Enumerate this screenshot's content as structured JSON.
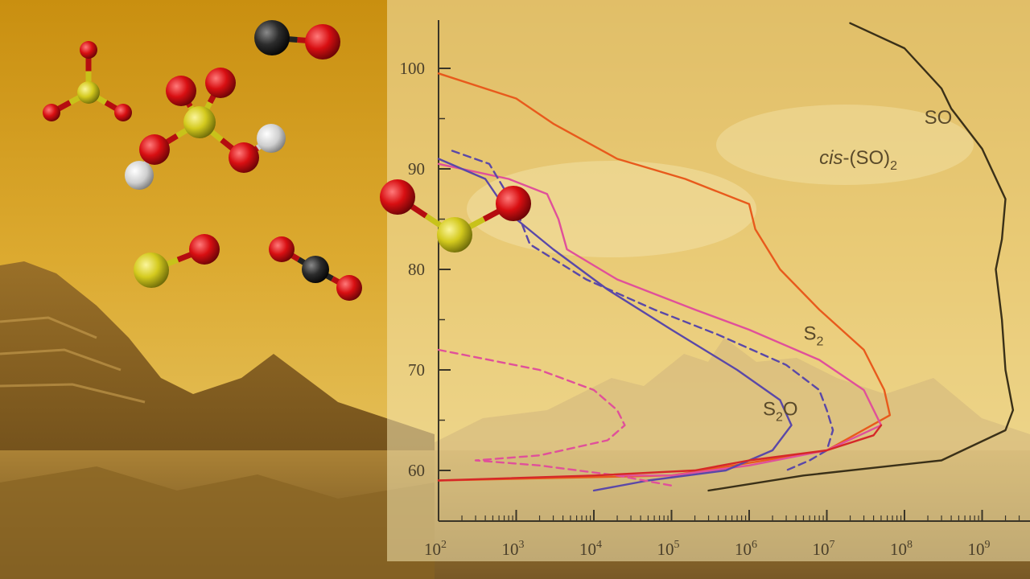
{
  "colors": {
    "sky_top": "#c98f10",
    "sky_mid": "#e0b43a",
    "ground": "#a87d2c",
    "panel": "#f4e6b0",
    "axis": "#3a3528",
    "series_cis_SO2": "#e85a1c",
    "series_S2": "#e0509a",
    "series_S2O": "#5a48a8",
    "series_SO": "#3a3018",
    "series_red": "#d52828"
  },
  "chart_data": {
    "type": "line",
    "title": "",
    "xlabel": "",
    "ylabel": "",
    "xscale": "log",
    "xlim": [
      100,
      3000000000
    ],
    "ylim": [
      56,
      106
    ],
    "x_ticks": [
      {
        "value": 100,
        "label": "10",
        "exp": "2"
      },
      {
        "value": 1000,
        "label": "10",
        "exp": "3"
      },
      {
        "value": 10000,
        "label": "10",
        "exp": "4"
      },
      {
        "value": 100000,
        "label": "10",
        "exp": "5"
      },
      {
        "value": 1000000,
        "label": "10",
        "exp": "6"
      },
      {
        "value": 10000000,
        "label": "10",
        "exp": "7"
      },
      {
        "value": 100000000,
        "label": "10",
        "exp": "8"
      },
      {
        "value": 1000000000,
        "label": "10",
        "exp": "9"
      }
    ],
    "y_ticks": [
      60,
      70,
      80,
      90,
      100
    ],
    "grid": false,
    "legend": "none",
    "series": [
      {
        "name": "cis-(SO)2",
        "label_parts": [
          "cis",
          "-(SO)",
          "2"
        ],
        "style": "solid",
        "color": "#e85a1c",
        "points": [
          [
            100,
            99.5
          ],
          [
            1000,
            97
          ],
          [
            3000,
            94.5
          ],
          [
            20000,
            91
          ],
          [
            150000,
            89
          ],
          [
            1000000,
            86.5
          ],
          [
            1200000,
            84
          ],
          [
            2500000,
            80
          ],
          [
            8000000,
            76
          ],
          [
            30000000,
            72
          ],
          [
            55000000,
            68
          ],
          [
            65000000,
            65.5
          ],
          [
            10000000,
            62
          ],
          [
            100000,
            59.5
          ],
          [
            100,
            59
          ]
        ]
      },
      {
        "name": "S2",
        "label_parts": [
          "S",
          "",
          "2"
        ],
        "style": "solid",
        "color": "#e0509a",
        "points": [
          [
            100,
            90.5
          ],
          [
            800,
            89
          ],
          [
            2500,
            87.5
          ],
          [
            3500,
            85
          ],
          [
            4500,
            82
          ],
          [
            20000,
            79
          ],
          [
            200000,
            76
          ],
          [
            1000000,
            74
          ],
          [
            8000000,
            71
          ],
          [
            30000000,
            68
          ],
          [
            50000000,
            64.5
          ],
          [
            10000000,
            62
          ],
          [
            1000000,
            60.5
          ],
          [
            100000,
            59.5
          ],
          [
            20000,
            59.5
          ]
        ]
      },
      {
        "name": "S2O",
        "label_parts": [
          "S",
          "2",
          "O"
        ],
        "style": "solid",
        "color": "#5a48a8",
        "points": [
          [
            100,
            91
          ],
          [
            400,
            89
          ],
          [
            600,
            87
          ],
          [
            1000,
            85
          ],
          [
            3000,
            82
          ],
          [
            15000,
            78
          ],
          [
            100000,
            74
          ],
          [
            700000,
            70
          ],
          [
            2500000,
            67
          ],
          [
            3500000,
            64.5
          ],
          [
            2000000,
            62
          ],
          [
            500000,
            60
          ],
          [
            50000,
            59
          ],
          [
            10000,
            58
          ]
        ]
      },
      {
        "name": "",
        "style": "dashed",
        "color": "#5a48a8",
        "points": [
          [
            150,
            91.8
          ],
          [
            450,
            90.5
          ],
          [
            700,
            88
          ],
          [
            1000,
            86
          ],
          [
            1500,
            82.5
          ],
          [
            8000,
            79
          ],
          [
            60000,
            76
          ],
          [
            400000,
            73.5
          ],
          [
            3000000,
            70.5
          ],
          [
            8000000,
            68
          ],
          [
            10000000,
            66
          ],
          [
            12000000,
            64
          ],
          [
            10000000,
            62
          ],
          [
            6000000,
            61
          ],
          [
            3000000,
            60
          ]
        ]
      },
      {
        "name": "",
        "style": "dashed",
        "color": "#e0509a",
        "points": [
          [
            100,
            72
          ],
          [
            2000,
            70
          ],
          [
            10000,
            68
          ],
          [
            20000,
            66
          ],
          [
            25000,
            64.5
          ],
          [
            15000,
            63
          ],
          [
            2000,
            61.5
          ],
          [
            300,
            61
          ],
          [
            2000,
            60.5
          ],
          [
            20000,
            59.5
          ],
          [
            100000,
            58.5
          ]
        ]
      },
      {
        "name": "",
        "style": "solid",
        "color": "#d52828",
        "points": [
          [
            100,
            59
          ],
          [
            10000,
            59.5
          ],
          [
            200000,
            60
          ],
          [
            1000000,
            61
          ],
          [
            10000000,
            62
          ],
          [
            40000000,
            63.5
          ],
          [
            50000000,
            64.5
          ]
        ]
      },
      {
        "name": "SO",
        "label_parts": [
          "SO",
          "",
          ""
        ],
        "style": "solid",
        "color": "#3a3018",
        "points": [
          [
            20000000,
            104.5
          ],
          [
            100000000,
            102
          ],
          [
            300000000,
            98
          ],
          [
            400000000,
            96
          ],
          [
            1000000000,
            92
          ],
          [
            2000000000,
            87
          ],
          [
            1800000000,
            83
          ],
          [
            1500000000,
            80
          ],
          [
            1800000000,
            75
          ],
          [
            2000000000,
            70
          ],
          [
            2500000000,
            66
          ],
          [
            2000000000,
            64
          ],
          [
            300000000,
            61
          ],
          [
            5000000,
            59.5
          ],
          [
            300000,
            58
          ]
        ]
      }
    ],
    "annotations": [
      {
        "series": "cis-(SO)2",
        "at": [
          8000000,
          90.5
        ]
      },
      {
        "series": "S2",
        "at": [
          5000000,
          73
        ]
      },
      {
        "series": "S2O",
        "at": [
          1500000,
          65.5
        ]
      },
      {
        "series": "SO",
        "at": [
          180000000,
          94.5
        ]
      }
    ]
  },
  "molecules": [
    {
      "name": "sulfur-trioxide",
      "atoms": [
        [
          "S",
          110,
          115,
          14
        ],
        [
          "O",
          110,
          62,
          11
        ],
        [
          "O",
          64,
          140,
          11
        ],
        [
          "O",
          153,
          140,
          11
        ]
      ]
    },
    {
      "name": "carbon-monoxide",
      "atoms": [
        [
          "C",
          338,
          47,
          22
        ],
        [
          "O",
          401,
          52,
          22
        ]
      ]
    },
    {
      "name": "sulfuric-acid",
      "atoms": [
        [
          "S",
          248,
          152,
          20
        ],
        [
          "O",
          225,
          113,
          19
        ],
        [
          "O",
          274,
          103,
          19
        ],
        [
          "O",
          192,
          186,
          19
        ],
        [
          "O",
          303,
          196,
          19
        ],
        [
          "H",
          173,
          218,
          18
        ],
        [
          "H",
          337,
          172,
          18
        ]
      ]
    },
    {
      "name": "sulfur-monoxide",
      "atoms": [
        [
          "S",
          188,
          336,
          22
        ],
        [
          "O",
          254,
          310,
          19
        ]
      ]
    },
    {
      "name": "carbon-dioxide",
      "atoms": [
        [
          "C",
          392,
          335,
          17
        ],
        [
          "O",
          350,
          310,
          16
        ],
        [
          "O",
          434,
          358,
          16
        ]
      ]
    },
    {
      "name": "sulfur-dioxide",
      "atoms": [
        [
          "S",
          565,
          292,
          22
        ],
        [
          "O",
          494,
          245,
          22
        ],
        [
          "O",
          638,
          253,
          22
        ]
      ]
    }
  ]
}
